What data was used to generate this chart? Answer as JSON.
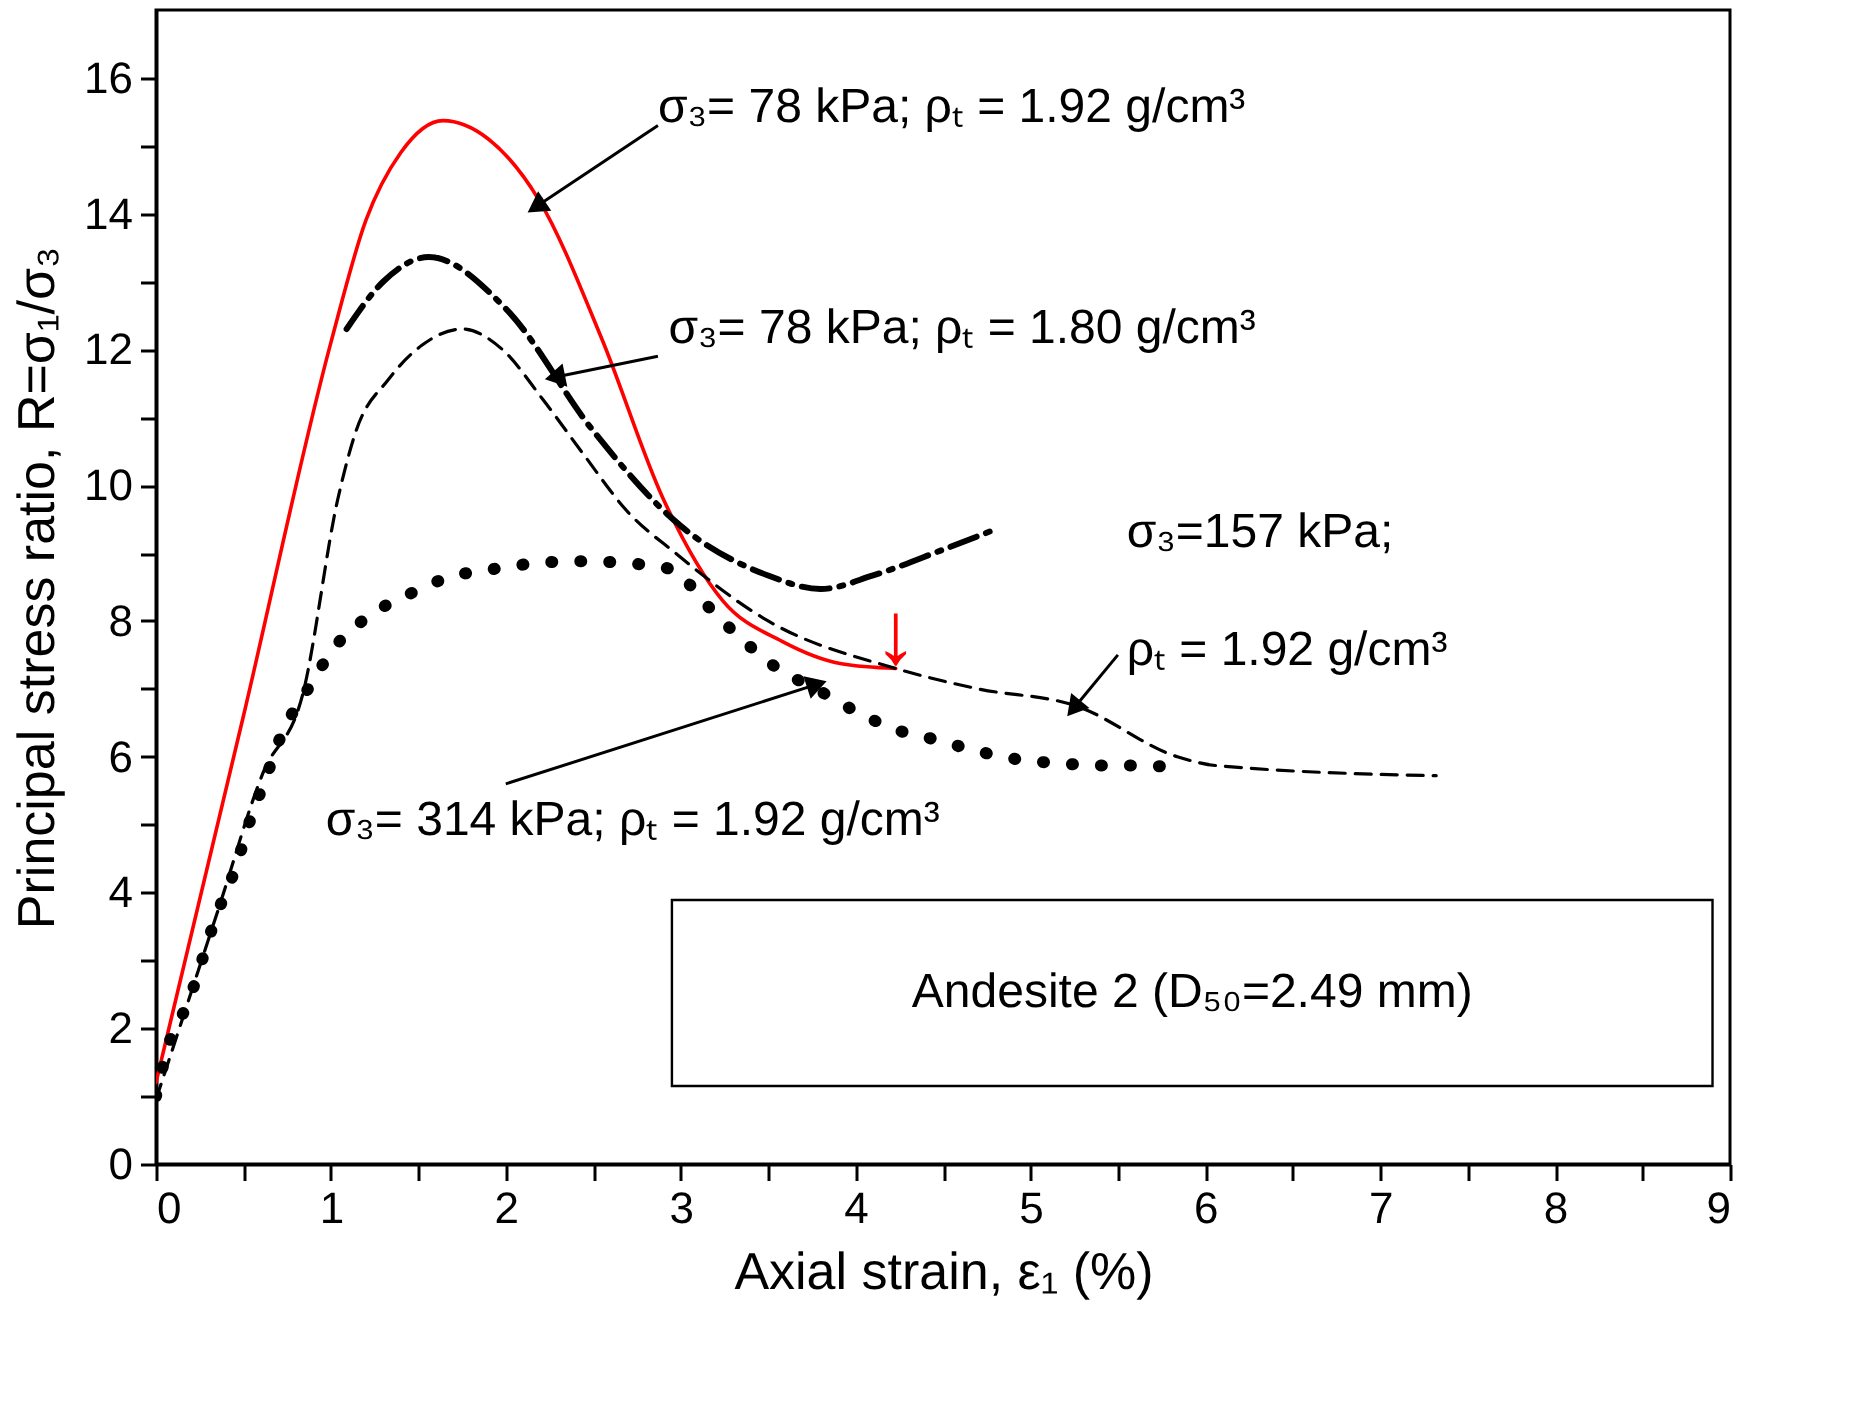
{
  "chart_data": {
    "type": "line",
    "xlabel": "Axial strain, ε₁ (%)",
    "ylabel": "Principal stress ratio, R=σ₁/σ₃",
    "xlim": [
      0,
      9
    ],
    "ylim": [
      0,
      17
    ],
    "xticks": [
      0,
      {
        "value": 0.5,
        "label": null
      },
      1,
      {
        "value": 1.5,
        "label": null
      },
      2,
      {
        "value": 2.5,
        "label": null
      },
      3,
      {
        "value": 3.5,
        "label": null
      },
      4,
      {
        "value": 4.5,
        "label": null
      },
      5,
      {
        "value": 5.5,
        "label": null
      },
      6,
      {
        "value": 6.5,
        "label": null
      },
      7,
      {
        "value": 7.5,
        "label": null
      },
      8,
      {
        "value": 8.5,
        "label": null
      },
      9
    ],
    "yticks": [
      0,
      {
        "value": 1,
        "label": null
      },
      2,
      {
        "value": 3,
        "label": null
      },
      4,
      {
        "value": 5,
        "label": null
      },
      6,
      {
        "value": 7,
        "label": null
      },
      8,
      {
        "value": 9,
        "label": null
      },
      10,
      {
        "value": 11,
        "label": null
      },
      12,
      {
        "value": 13,
        "label": null
      },
      14,
      {
        "value": 15,
        "label": null
      },
      16
    ],
    "grid": false,
    "series": [
      {
        "color": "#ff0000",
        "line_style": "solid",
        "x": [
          0,
          0.5,
          1.0,
          1.2,
          1.4,
          1.64,
          1.9,
          2.19,
          2.55,
          2.9,
          3.24,
          3.58,
          3.92,
          4.23
        ],
        "values": [
          1.2,
          6.6,
          12.1,
          13.9,
          14.9,
          15.37,
          15.1,
          14.2,
          12.15,
          9.8,
          8.3,
          7.7,
          7.37,
          7.3
        ]
      },
      {
        "color": "#000000",
        "line_style": "dashdot",
        "x": [
          1.09,
          1.3,
          1.56,
          2.0,
          2.5,
          3.0,
          3.5,
          3.8,
          4.1,
          4.5,
          4.8
        ],
        "values": [
          12.3,
          13.0,
          13.36,
          12.6,
          10.8,
          9.4,
          8.67,
          8.47,
          8.67,
          9.05,
          9.35
        ]
      },
      {
        "color": "#000000",
        "line_style": "dashed",
        "x": [
          0,
          0.35,
          0.61,
          0.84,
          1.04,
          1.14,
          1.33,
          1.52,
          1.75,
          1.98,
          2.21,
          2.44,
          2.7,
          2.97,
          3.5,
          4.23,
          4.7,
          5.26,
          5.84,
          6.06,
          7.32
        ],
        "values": [
          0.95,
          3.7,
          5.75,
          6.93,
          9.8,
          10.77,
          11.56,
          12.06,
          12.3,
          12.0,
          11.27,
          10.47,
          9.6,
          9.0,
          8.0,
          7.3,
          7.0,
          6.75,
          6.0,
          5.87,
          5.72
        ]
      },
      {
        "color": "#000000",
        "line_style": "dotted",
        "x": [
          0,
          0.07,
          0.18,
          0.35,
          0.46,
          0.53,
          0.63,
          0.72,
          0.86,
          1.03,
          1.24,
          1.46,
          1.67,
          1.92,
          2.17,
          2.44,
          2.7,
          2.95,
          3.15,
          3.35,
          3.56,
          3.78,
          4.0,
          4.23,
          4.46,
          4.7,
          4.93,
          5.18,
          5.41,
          5.61,
          5.84
        ],
        "values": [
          1.0,
          1.74,
          2.36,
          3.69,
          4.4,
          5.0,
          5.7,
          6.34,
          6.96,
          7.64,
          8.11,
          8.41,
          8.64,
          8.76,
          8.85,
          8.88,
          8.85,
          8.76,
          8.23,
          7.73,
          7.29,
          6.99,
          6.67,
          6.4,
          6.25,
          6.08,
          5.96,
          5.9,
          5.87,
          5.87,
          5.84
        ]
      }
    ],
    "annotations": [
      {
        "text": "σ₃= 78 kPa; ρₜ = 1.92 g/cm³",
        "x": 2.19,
        "y": 14.13
      },
      {
        "text": "σ₃= 78 kPa; ρₜ = 1.80 g/cm³",
        "x": 2.3,
        "y": 11.6
      },
      {
        "text": "ρₜ = 1.92 g/cm³",
        "x": 5.26,
        "y": 6.75
      },
      {
        "text": "σ₃= 314 kPa; ρₜ = 1.92 g/cm³",
        "x": 3.76,
        "y": 7.05
      },
      {
        "text": "↓",
        "x": 4.23,
        "y": 7.35
      },
      "σ₃=157 kPa;",
      "Andesite 2 (D₅₀=2.49 mm)"
    ]
  }
}
